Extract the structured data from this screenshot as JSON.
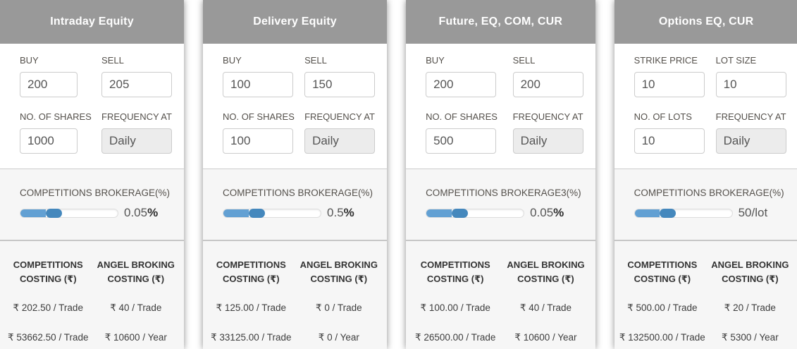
{
  "colors": {
    "header_bg": "#999999",
    "section_bg": "#f6f6f6",
    "divider": "#cccccc",
    "label_text": "#54504b",
    "slider_fill": "#62a0d3",
    "slider_handle": "#4588bd"
  },
  "cards": [
    {
      "title": "Intraday Equity",
      "fields": [
        {
          "label": "BUY",
          "value": "200"
        },
        {
          "label": "SELL",
          "value": "205"
        },
        {
          "label": "NO. OF SHARES",
          "value": "1000"
        },
        {
          "label": "FREQUENCY AT",
          "value": "Daily"
        }
      ],
      "brokerage": {
        "label": "COMPETITIONS BROKERAGE(%)",
        "value": "0.05",
        "unit": "%",
        "fill_pct": 26
      },
      "costing": {
        "col1_header": "COMPETITIONS COSTING (₹)",
        "col2_header": "ANGEL BROKING COSTING (₹)",
        "rows": [
          [
            "₹ 202.50 / Trade",
            "₹ 40 / Trade"
          ],
          [
            "₹ 53662.50 / Trade",
            "₹ 10600 / Year"
          ]
        ]
      }
    },
    {
      "title": "Delivery Equity",
      "fields": [
        {
          "label": "BUY",
          "value": "100"
        },
        {
          "label": "SELL",
          "value": "150"
        },
        {
          "label": "NO. OF SHARES",
          "value": "100"
        },
        {
          "label": "FREQUENCY AT",
          "value": "Daily"
        }
      ],
      "brokerage": {
        "label": "COMPETITIONS BROKERAGE(%)",
        "value": "0.5",
        "unit": "%",
        "fill_pct": 26
      },
      "costing": {
        "col1_header": "COMPETITIONS COSTING (₹)",
        "col2_header": "ANGEL BROKING COSTING (₹)",
        "rows": [
          [
            "₹ 125.00 / Trade",
            "₹ 0 / Trade"
          ],
          [
            "₹ 33125.00 / Trade",
            "₹ 0 / Year"
          ]
        ]
      }
    },
    {
      "title": "Future, EQ, COM, CUR",
      "fields": [
        {
          "label": "BUY",
          "value": "200"
        },
        {
          "label": "SELL",
          "value": "200"
        },
        {
          "label": "NO. OF SHARES",
          "value": "500"
        },
        {
          "label": "FREQUENCY AT",
          "value": "Daily"
        }
      ],
      "brokerage": {
        "label": "COMPETITIONS BROKERAGE3(%)",
        "value": "0.05",
        "unit": "%",
        "fill_pct": 26
      },
      "costing": {
        "col1_header": "COMPETITIONS COSTING (₹)",
        "col2_header": "ANGEL BROKING COSTING (₹)",
        "rows": [
          [
            "₹ 100.00 / Trade",
            "₹ 40 / Trade"
          ],
          [
            "₹ 26500.00 / Trade",
            "₹ 10600 / Year"
          ]
        ]
      }
    },
    {
      "title": "Options EQ, CUR",
      "fields": [
        {
          "label": "STRIKE PRICE",
          "value": "10"
        },
        {
          "label": "LOT SIZE",
          "value": "10"
        },
        {
          "label": "NO. OF LOTS",
          "value": "10"
        },
        {
          "label": "FREQUENCY AT",
          "value": "Daily"
        }
      ],
      "brokerage": {
        "label": "COMPETITIONS BROKERAGE(%)",
        "value": "50/lot",
        "unit": "",
        "fill_pct": 26
      },
      "costing": {
        "col1_header": "COMPETITIONS COSTING (₹)",
        "col2_header": "ANGEL BROKING COSTING (₹)",
        "rows": [
          [
            "₹ 500.00 / Trade",
            "₹ 20 / Trade"
          ],
          [
            "₹ 132500.00 / Trade",
            "₹ 5300 / Year"
          ]
        ]
      }
    }
  ]
}
